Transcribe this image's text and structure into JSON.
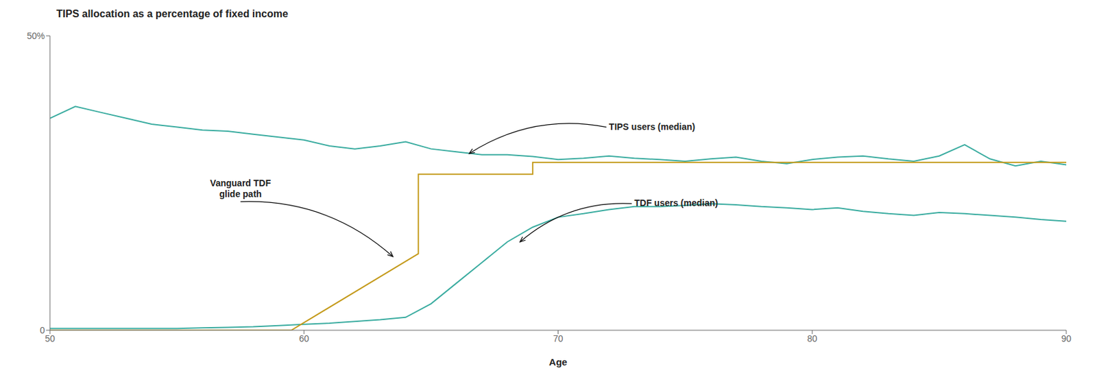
{
  "chart_data": {
    "type": "line",
    "title": "TIPS allocation as a percentage of fixed income",
    "xlabel": "Age",
    "xlim": [
      50,
      90
    ],
    "xticks": [
      50,
      60,
      70,
      80,
      90
    ],
    "ylim": [
      0,
      0.5
    ],
    "yticks": [
      0,
      {
        "value": 0.5,
        "label": "50%"
      }
    ],
    "grid": false,
    "series": [
      {
        "color": "#3aaca0",
        "x": [
          50,
          51,
          52,
          53,
          54,
          55,
          56,
          57,
          58,
          59,
          60,
          61,
          62,
          63,
          64,
          65,
          66,
          67,
          68,
          69,
          70,
          71,
          72,
          73,
          74,
          75,
          76,
          77,
          78,
          79,
          80,
          81,
          82,
          83,
          84,
          85,
          86,
          87,
          88,
          89,
          90
        ],
        "values": [
          0.36,
          0.38,
          0.37,
          0.36,
          0.35,
          0.345,
          0.34,
          0.338,
          0.333,
          0.328,
          0.323,
          0.313,
          0.308,
          0.313,
          0.32,
          0.308,
          0.303,
          0.298,
          0.298,
          0.295,
          0.29,
          0.292,
          0.296,
          0.292,
          0.29,
          0.287,
          0.291,
          0.294,
          0.287,
          0.283,
          0.29,
          0.294,
          0.296,
          0.291,
          0.287,
          0.296,
          0.315,
          0.291,
          0.279,
          0.287,
          0.281
        ]
      },
      {
        "color": "#3aaca0",
        "x": [
          50,
          51,
          52,
          53,
          54,
          55,
          56,
          57,
          58,
          59,
          60,
          61,
          62,
          63,
          64,
          65,
          66,
          67,
          68,
          69,
          70,
          71,
          72,
          73,
          74,
          75,
          76,
          77,
          78,
          79,
          80,
          81,
          82,
          83,
          84,
          85,
          86,
          87,
          88,
          89,
          90
        ],
        "values": [
          0.003,
          0.003,
          0.003,
          0.003,
          0.003,
          0.003,
          0.004,
          0.005,
          0.006,
          0.008,
          0.01,
          0.012,
          0.015,
          0.018,
          0.022,
          0.045,
          0.08,
          0.115,
          0.15,
          0.175,
          0.192,
          0.198,
          0.205,
          0.21,
          0.21,
          0.212,
          0.215,
          0.213,
          0.21,
          0.208,
          0.205,
          0.208,
          0.202,
          0.198,
          0.195,
          0.2,
          0.198,
          0.195,
          0.192,
          0.188,
          0.185
        ]
      },
      {
        "color": "#c49a1a",
        "x": [
          50,
          59.5,
          59.5,
          64.5,
          64.5,
          69.0,
          69.0,
          90
        ],
        "values": [
          0.0,
          0.0,
          0.0,
          0.13,
          0.265,
          0.265,
          0.285,
          0.285
        ]
      }
    ],
    "annotations": [
      {
        "text": "TIPS users (median)",
        "x": 66.5,
        "y": 0.3,
        "text_x": 72,
        "text_y": 0.345
      },
      {
        "text": "TDF users (median)",
        "x": 68.5,
        "y": 0.15,
        "text_x": 73,
        "text_y": 0.215
      },
      {
        "text": "Vanguard TDF\nglide path",
        "x": 63.5,
        "y": 0.125,
        "text_x": 57.5,
        "text_y": 0.24
      }
    ]
  }
}
